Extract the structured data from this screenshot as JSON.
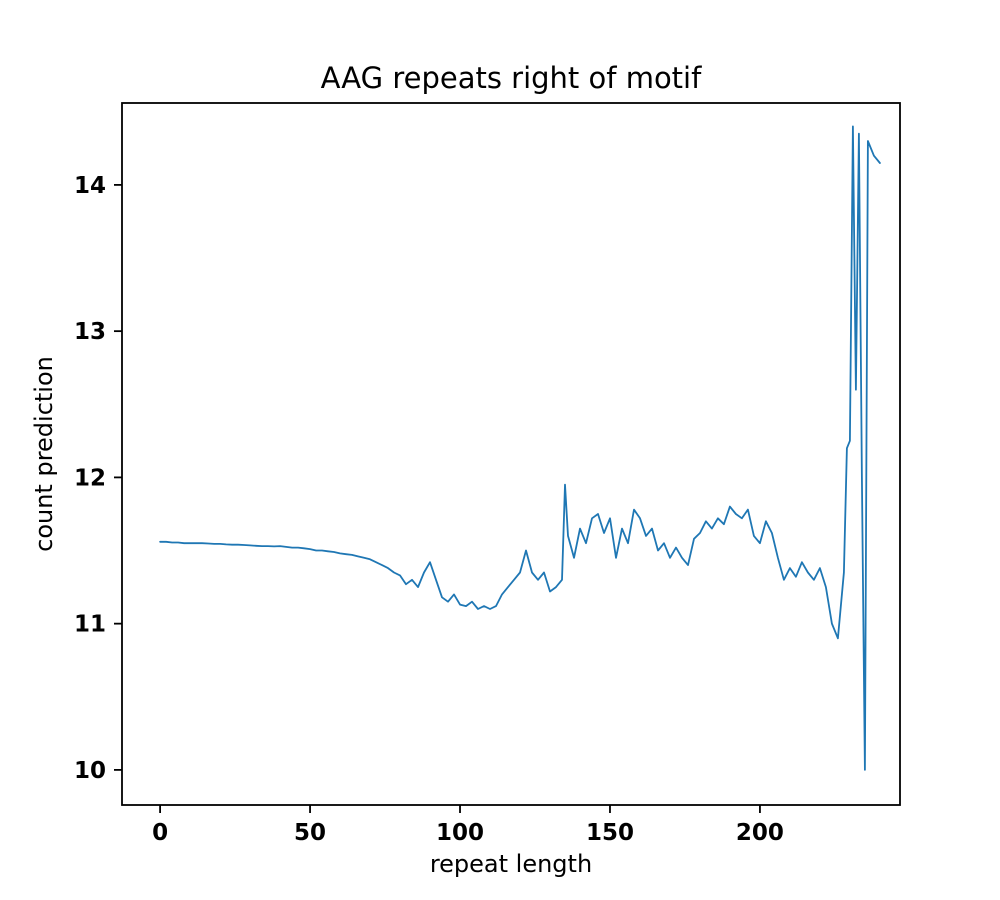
{
  "chart_data": {
    "type": "line",
    "title": "AAG repeats right of motif",
    "xlabel": "repeat length",
    "ylabel": "count prediction",
    "xlim": [
      -12.7,
      246.7
    ],
    "ylim": [
      9.76,
      14.56
    ],
    "xticks": [
      0,
      50,
      100,
      150,
      200
    ],
    "yticks": [
      10,
      11,
      12,
      13,
      14
    ],
    "grid": false,
    "legend": "none",
    "line_color": "#1f77b4",
    "line_width": 1.8,
    "points": [
      [
        0,
        11.56
      ],
      [
        2,
        11.56
      ],
      [
        4,
        11.555
      ],
      [
        6,
        11.555
      ],
      [
        8,
        11.55
      ],
      [
        10,
        11.55
      ],
      [
        12,
        11.55
      ],
      [
        14,
        11.55
      ],
      [
        16,
        11.548
      ],
      [
        18,
        11.545
      ],
      [
        20,
        11.545
      ],
      [
        22,
        11.542
      ],
      [
        24,
        11.54
      ],
      [
        26,
        11.54
      ],
      [
        28,
        11.538
      ],
      [
        30,
        11.535
      ],
      [
        32,
        11.532
      ],
      [
        34,
        11.53
      ],
      [
        36,
        11.53
      ],
      [
        38,
        11.528
      ],
      [
        40,
        11.53
      ],
      [
        42,
        11.525
      ],
      [
        44,
        11.52
      ],
      [
        46,
        11.52
      ],
      [
        48,
        11.515
      ],
      [
        50,
        11.51
      ],
      [
        52,
        11.5
      ],
      [
        54,
        11.5
      ],
      [
        56,
        11.495
      ],
      [
        58,
        11.49
      ],
      [
        60,
        11.48
      ],
      [
        62,
        11.475
      ],
      [
        64,
        11.47
      ],
      [
        66,
        11.46
      ],
      [
        68,
        11.45
      ],
      [
        70,
        11.44
      ],
      [
        72,
        11.42
      ],
      [
        74,
        11.4
      ],
      [
        76,
        11.38
      ],
      [
        78,
        11.35
      ],
      [
        80,
        11.33
      ],
      [
        82,
        11.27
      ],
      [
        84,
        11.3
      ],
      [
        86,
        11.25
      ],
      [
        88,
        11.35
      ],
      [
        90,
        11.42
      ],
      [
        92,
        11.3
      ],
      [
        94,
        11.18
      ],
      [
        96,
        11.15
      ],
      [
        98,
        11.2
      ],
      [
        100,
        11.13
      ],
      [
        102,
        11.12
      ],
      [
        104,
        11.15
      ],
      [
        106,
        11.1
      ],
      [
        108,
        11.12
      ],
      [
        110,
        11.1
      ],
      [
        112,
        11.12
      ],
      [
        114,
        11.2
      ],
      [
        116,
        11.25
      ],
      [
        118,
        11.3
      ],
      [
        120,
        11.35
      ],
      [
        122,
        11.5
      ],
      [
        124,
        11.35
      ],
      [
        126,
        11.3
      ],
      [
        128,
        11.35
      ],
      [
        130,
        11.22
      ],
      [
        132,
        11.25
      ],
      [
        134,
        11.3
      ],
      [
        135,
        11.95
      ],
      [
        136,
        11.6
      ],
      [
        138,
        11.45
      ],
      [
        140,
        11.65
      ],
      [
        142,
        11.55
      ],
      [
        144,
        11.72
      ],
      [
        146,
        11.75
      ],
      [
        148,
        11.62
      ],
      [
        150,
        11.72
      ],
      [
        152,
        11.45
      ],
      [
        154,
        11.65
      ],
      [
        156,
        11.55
      ],
      [
        158,
        11.78
      ],
      [
        160,
        11.72
      ],
      [
        162,
        11.6
      ],
      [
        164,
        11.65
      ],
      [
        166,
        11.5
      ],
      [
        168,
        11.55
      ],
      [
        170,
        11.45
      ],
      [
        172,
        11.52
      ],
      [
        174,
        11.45
      ],
      [
        176,
        11.4
      ],
      [
        178,
        11.58
      ],
      [
        180,
        11.62
      ],
      [
        182,
        11.7
      ],
      [
        184,
        11.65
      ],
      [
        186,
        11.72
      ],
      [
        188,
        11.68
      ],
      [
        190,
        11.8
      ],
      [
        192,
        11.75
      ],
      [
        194,
        11.72
      ],
      [
        196,
        11.78
      ],
      [
        198,
        11.6
      ],
      [
        200,
        11.55
      ],
      [
        202,
        11.7
      ],
      [
        204,
        11.62
      ],
      [
        206,
        11.45
      ],
      [
        208,
        11.3
      ],
      [
        210,
        11.38
      ],
      [
        212,
        11.32
      ],
      [
        214,
        11.42
      ],
      [
        216,
        11.35
      ],
      [
        218,
        11.3
      ],
      [
        220,
        11.38
      ],
      [
        222,
        11.25
      ],
      [
        224,
        11.0
      ],
      [
        226,
        10.9
      ],
      [
        228,
        11.35
      ],
      [
        229,
        12.2
      ],
      [
        230,
        12.25
      ],
      [
        231,
        14.4
      ],
      [
        232,
        12.6
      ],
      [
        233,
        14.35
      ],
      [
        234,
        12.0
      ],
      [
        235,
        10.0
      ],
      [
        236,
        14.3
      ],
      [
        238,
        14.2
      ],
      [
        240,
        14.15
      ]
    ]
  }
}
